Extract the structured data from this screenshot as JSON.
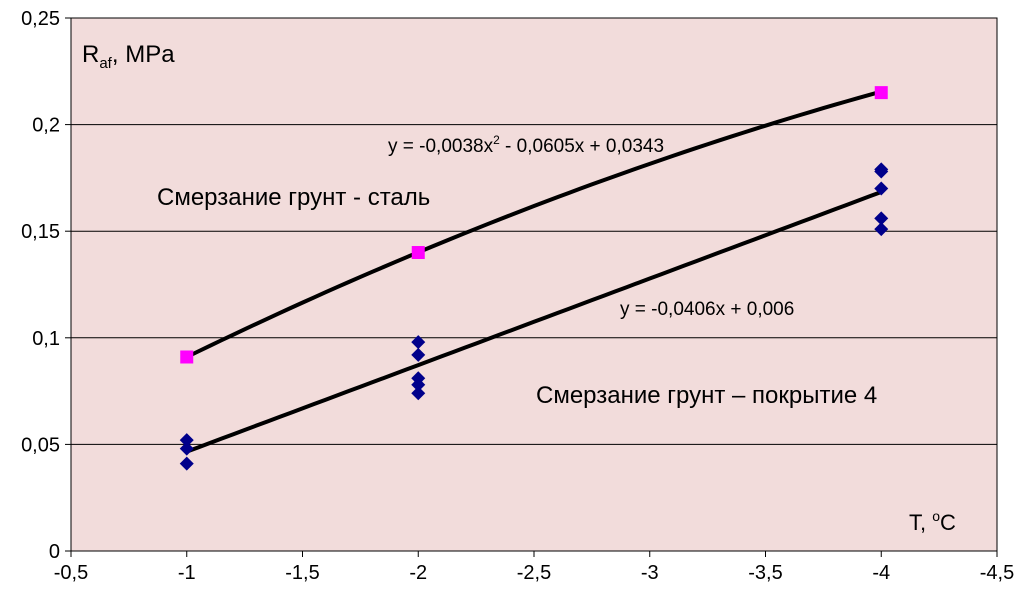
{
  "colors": {
    "plot_background": "#f2dcdb",
    "gridline": "#000000",
    "trendline": "#000000",
    "series_steel": "#ff00ff",
    "series_coating": "#00008b"
  },
  "chart_data": {
    "type": "scatter",
    "x_axis": {
      "reversed": true,
      "range": [
        -0.5,
        -4.5
      ],
      "ticks": [
        -0.5,
        -1,
        -1.5,
        -2,
        -2.5,
        -3,
        -3.5,
        -4,
        -4.5
      ],
      "tick_labels": [
        "-0,5",
        "-1",
        "-1,5",
        "-2",
        "-2,5",
        "-3",
        "-3,5",
        "-4",
        "-4,5"
      ]
    },
    "y_axis": {
      "range": [
        0,
        0.25
      ],
      "ticks": [
        0,
        0.05,
        0.1,
        0.15,
        0.2,
        0.25
      ],
      "tick_labels": [
        "0",
        "0,05",
        "0,1",
        "0,15",
        "0,2",
        "0,25"
      ]
    },
    "grid": {
      "horizontal": true,
      "vertical": false
    },
    "ylabel": {
      "main": "R",
      "sub": "af",
      "rest": ", MPa"
    },
    "xlabel": {
      "main": "T, ",
      "sup": "o",
      "rest": "C"
    },
    "series": [
      {
        "marker": "square",
        "color": "#ff00ff",
        "points": [
          [
            -1,
            0.091
          ],
          [
            -2,
            0.14
          ],
          [
            -4,
            0.215
          ]
        ],
        "label": "Смерзание грунт - сталь",
        "trendline": {
          "type": "poly2",
          "coef": {
            "a": -0.0038,
            "b": -0.0605,
            "c": 0.0343
          },
          "equation": {
            "pre": "y = -0,0038x",
            "sup": "2",
            "post": " - 0,0605x + 0,0343"
          }
        }
      },
      {
        "marker": "diamond",
        "color": "#00008b",
        "points": [
          [
            -1,
            0.041
          ],
          [
            -1,
            0.048
          ],
          [
            -1,
            0.052
          ],
          [
            -2,
            0.074
          ],
          [
            -2,
            0.078
          ],
          [
            -2,
            0.081
          ],
          [
            -2,
            0.092
          ],
          [
            -2,
            0.098
          ],
          [
            -4,
            0.151
          ],
          [
            -4,
            0.156
          ],
          [
            -4,
            0.17
          ],
          [
            -4,
            0.178
          ],
          [
            -4,
            0.179
          ]
        ],
        "label": "Смерзание грунт – покрытие 4",
        "trendline": {
          "type": "linear",
          "coef": {
            "slope": -0.0406,
            "intercept": 0.006
          },
          "equation": {
            "pre": "y = -0,0406x + 0,006",
            "sup": "",
            "post": ""
          }
        }
      }
    ]
  }
}
